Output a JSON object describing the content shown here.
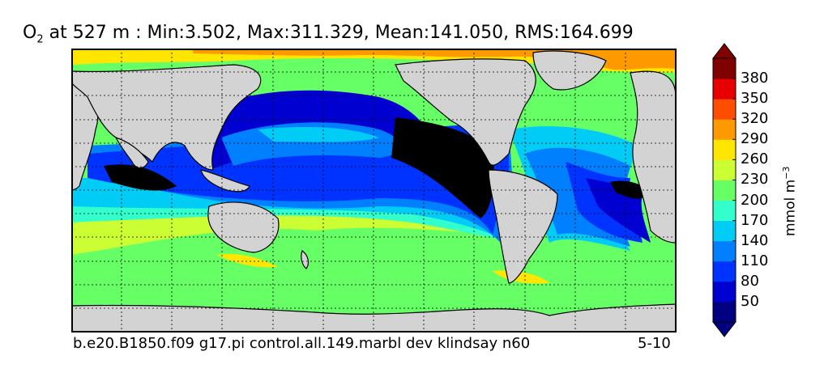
{
  "title": {
    "variable": "O",
    "subscript": "2",
    "text": " at 527 m : Min:3.502, Max:311.329, Mean:141.050, RMS:164.699"
  },
  "footer": {
    "case_name": "b.e20.B1850.f09 g17.pi control.all.149.marbl dev klindsay n60",
    "years": "5-10"
  },
  "colorbar": {
    "units": "mmol m",
    "units_exponent": "−3",
    "ticks": [
      "50",
      "80",
      "110",
      "140",
      "170",
      "200",
      "230",
      "260",
      "290",
      "320",
      "350",
      "380"
    ],
    "level_colors": [
      "#000080",
      "#0000d0",
      "#0033ff",
      "#0080ff",
      "#00ccf5",
      "#33ffcc",
      "#66ff66",
      "#ccff33",
      "#ffe600",
      "#ff9900",
      "#ff4d00",
      "#e60000",
      "#800000"
    ],
    "extend": "both"
  },
  "map": {
    "projection": "cylindrical",
    "grid": "dashed",
    "land_color": "#d3d3d3",
    "missing_color": "#ffffff",
    "anoxic_color": "#000000"
  }
}
